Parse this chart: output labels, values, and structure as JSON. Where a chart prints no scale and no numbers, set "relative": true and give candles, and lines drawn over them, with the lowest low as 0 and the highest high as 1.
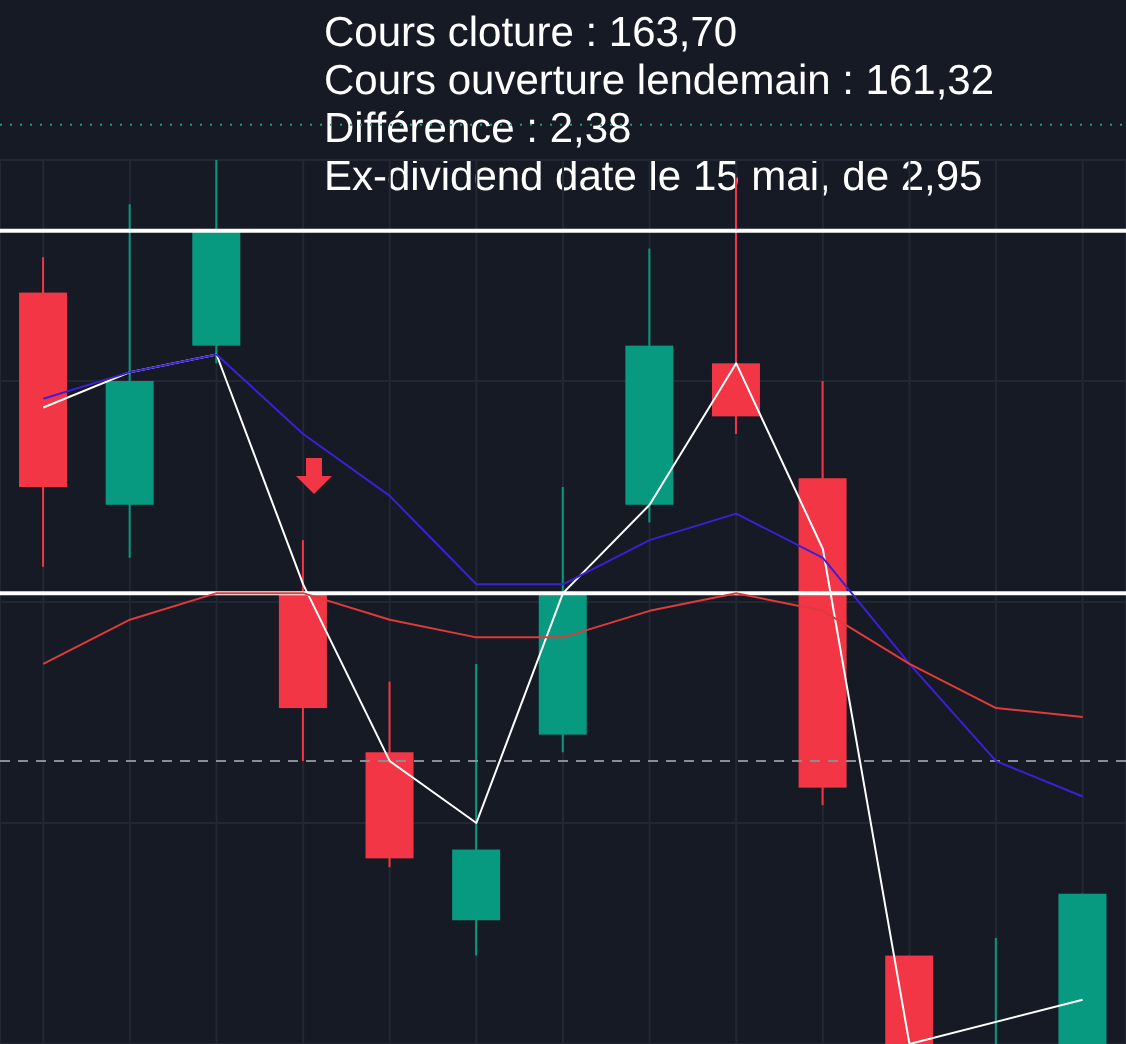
{
  "chart_data": {
    "type": "candlestick",
    "relative": true,
    "grid": true,
    "tick_labels": false,
    "categories": [
      null,
      null,
      null,
      null,
      null,
      null,
      null,
      null,
      null,
      null,
      null,
      null,
      null
    ],
    "ohlc": [
      [
        0.85,
        0.89,
        0.54,
        0.63
      ],
      [
        0.61,
        0.95,
        0.55,
        0.75
      ],
      [
        0.79,
        1.0,
        0.77,
        0.92
      ],
      [
        0.51,
        0.57,
        0.32,
        0.38
      ],
      [
        0.33,
        0.41,
        0.2,
        0.21
      ],
      [
        0.14,
        0.43,
        0.1,
        0.22
      ],
      [
        0.35,
        0.63,
        0.33,
        0.51
      ],
      [
        0.61,
        0.9,
        0.59,
        0.79
      ],
      [
        0.77,
        0.98,
        0.69,
        0.71
      ],
      [
        0.64,
        0.75,
        0.27,
        0.29
      ],
      [
        0.1,
        0.1,
        0,
        0
      ],
      [
        0,
        0.12,
        0,
        0
      ],
      [
        0,
        0.17,
        0,
        0.17
      ]
    ],
    "series": [
      {
        "type": "line",
        "color": "#ffffff",
        "values": [
          0.72,
          0.76,
          0.78,
          0.52,
          0.32,
          0.25,
          0.51,
          0.61,
          0.77,
          0.56,
          0,
          null,
          0.05
        ]
      },
      {
        "type": "line",
        "color": "#3d1fd6",
        "values": [
          0.73,
          0.76,
          0.78,
          0.69,
          0.62,
          0.52,
          0.52,
          0.57,
          0.6,
          0.55,
          0.43,
          0.32,
          0.28
        ]
      },
      {
        "type": "line",
        "color": "#e03a3a",
        "values": [
          0.43,
          0.48,
          0.51,
          0.51,
          0.48,
          0.46,
          0.46,
          0.49,
          0.51,
          0.49,
          0.43,
          0.38,
          0.37
        ]
      }
    ],
    "ref_lines": [
      {
        "axis": "y",
        "value": 0.92,
        "color": "#ffffff",
        "line_style": "solid"
      },
      {
        "axis": "y",
        "value": 0.51,
        "color": "#ffffff",
        "line_style": "solid"
      },
      {
        "axis": "y",
        "value": 0.32,
        "color": "#8a8d96",
        "line_style": "dashed"
      },
      {
        "axis": "y",
        "value": 1.04,
        "color": "#1f9f7a",
        "line_style": "dotted"
      }
    ],
    "annotations": [
      "Cours cloture : 163,70",
      "Cours ouverture lendemain : 161,32",
      "Différence : 2,38",
      "Ex-dividend date le 15 mai, de 2,95"
    ]
  }
}
